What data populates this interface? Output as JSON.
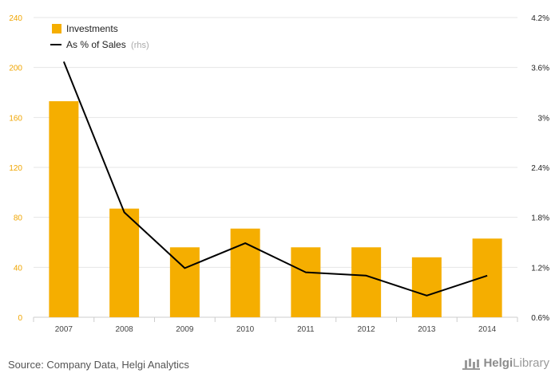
{
  "chart_data": {
    "type": "bar+line",
    "categories": [
      "2007",
      "2008",
      "2009",
      "2010",
      "2011",
      "2012",
      "2013",
      "2014"
    ],
    "series": [
      {
        "name": "Investments",
        "type": "bar",
        "axis": "left",
        "color": "#f5ae00",
        "values": [
          173,
          87,
          56,
          71,
          56,
          56,
          48,
          63
        ]
      },
      {
        "name": "As % of Sales",
        "name_suffix": "(rhs)",
        "type": "line",
        "axis": "right",
        "color": "#000000",
        "values": [
          3.67,
          1.86,
          1.19,
          1.49,
          1.14,
          1.1,
          0.86,
          1.1
        ]
      }
    ],
    "y_left": {
      "min": 0,
      "max": 240,
      "ticks": [
        "0",
        "40",
        "80",
        "120",
        "160",
        "200",
        "240"
      ]
    },
    "y_right": {
      "min": 0.6,
      "max": 4.2,
      "ticks": [
        "0.6%",
        "1.2%",
        "1.8%",
        "2.4%",
        "3%",
        "3.6%",
        "4.2%"
      ]
    },
    "grid": true,
    "legend": "top-left"
  },
  "footer": {
    "source": "Source: Company Data, Helgi Analytics"
  },
  "logo": {
    "text_a": "Helgi",
    "text_b": "Library"
  }
}
